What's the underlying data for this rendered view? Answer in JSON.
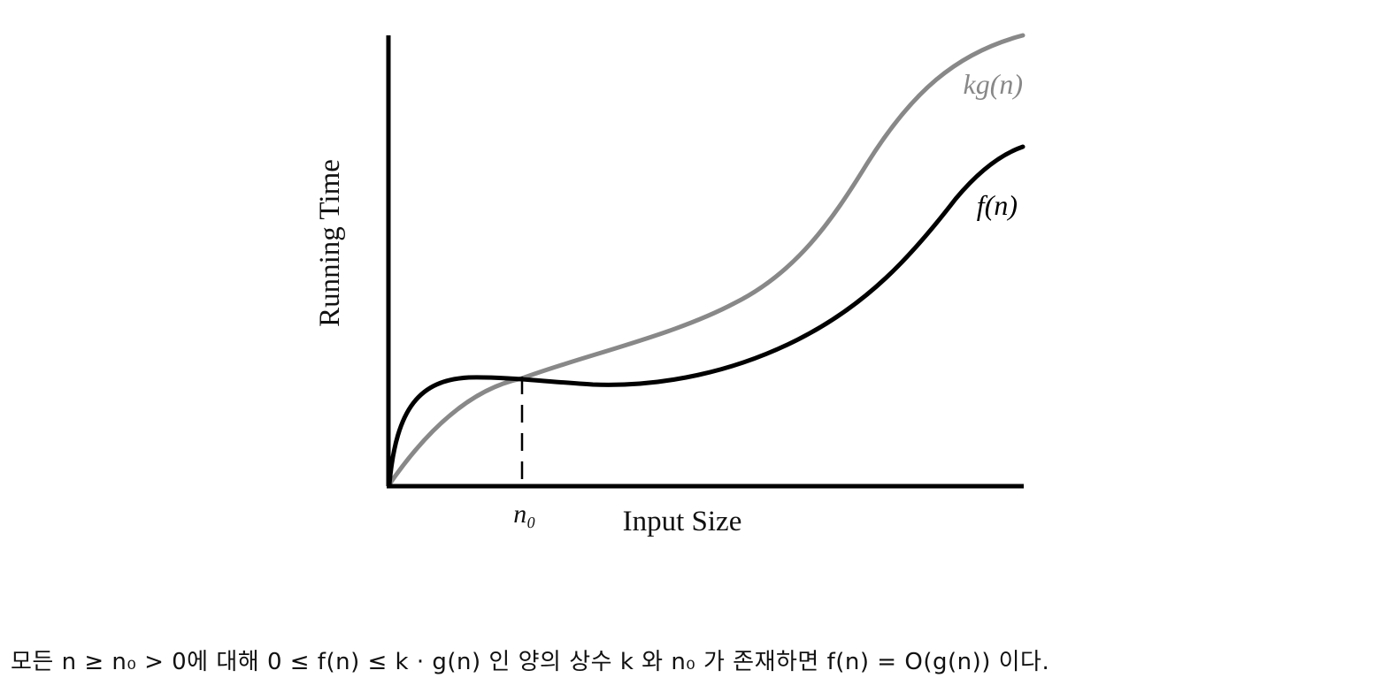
{
  "diagram": {
    "axes": {
      "y_label": "Running Time",
      "x_label": "Input Size"
    },
    "curves": [
      {
        "id": "kg",
        "label": "kg(n)",
        "color": "#888888"
      },
      {
        "id": "f",
        "label": "f(n)",
        "color": "#000000"
      }
    ],
    "markers": {
      "n0_label": "n₀"
    }
  },
  "caption": "모든  n ≥ n₀ > 0에  대해  0 ≤ f(n) ≤ k · g(n)  인  양의  상수  k 와  n₀ 가  존재하면  f(n) = O(g(n)) 이다."
}
